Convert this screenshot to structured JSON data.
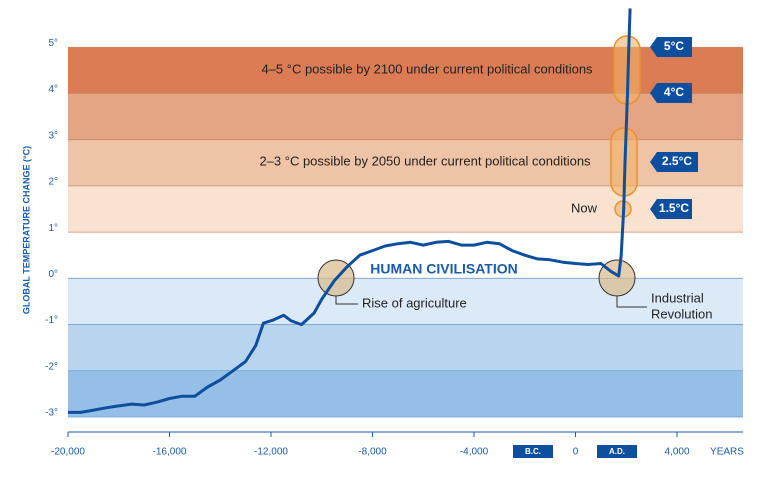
{
  "chart_data": {
    "type": "line",
    "y_label": "GLOBAL TEMPERATURE CHANGE (°C)",
    "x_unit_label": "YEARS",
    "era_labels": [
      "B.C.",
      "A.D."
    ],
    "xlim": [
      -20000,
      6600
    ],
    "xticks": [
      {
        "value": -20000,
        "label": "-20,000"
      },
      {
        "value": -16000,
        "label": "-16,000"
      },
      {
        "value": -12000,
        "label": "-12,000"
      },
      {
        "value": -8000,
        "label": "-8,000"
      },
      {
        "value": -4000,
        "label": "-4,000"
      },
      0,
      {
        "value": 4000,
        "label": "4,000"
      }
    ],
    "ylim": [
      -3,
      6
    ],
    "yticks": [
      {
        "value": -3,
        "label": "-3°"
      },
      {
        "value": -2,
        "label": "-2°"
      },
      {
        "value": -1,
        "label": "-1°"
      },
      {
        "value": 0,
        "label": "0°"
      },
      {
        "value": 1,
        "label": "1°"
      },
      {
        "value": 2,
        "label": "2°"
      },
      {
        "value": 3,
        "label": "3°"
      },
      {
        "value": 4,
        "label": "4°"
      },
      {
        "value": 5,
        "label": "5°"
      }
    ],
    "bands": [
      {
        "from": 4,
        "to": 5,
        "color": "#dc7c55"
      },
      {
        "from": 3,
        "to": 4,
        "color": "#e6a582"
      },
      {
        "from": 2,
        "to": 3,
        "color": "#efc3a5"
      },
      {
        "from": 1,
        "to": 2,
        "color": "#f9e2cf"
      },
      {
        "from": -1,
        "to": 0,
        "color": "#dceaf8"
      },
      {
        "from": -2,
        "to": -1,
        "color": "#b9d4ef"
      },
      {
        "from": -3,
        "to": -2,
        "color": "#95bfe6"
      }
    ],
    "series": [
      {
        "color": "#0d4f9e",
        "x": [
          -20000,
          -19500,
          -19000,
          -18500,
          -18000,
          -17500,
          -17000,
          -16500,
          -16000,
          -15500,
          -15000,
          -14500,
          -14000,
          -13500,
          -13000,
          -12600,
          -12300,
          -11900,
          -11500,
          -11200,
          -10800,
          -10300,
          -10000,
          -9500,
          -9000,
          -8500,
          -8000,
          -7500,
          -7000,
          -6500,
          -6000,
          -5500,
          -5000,
          -4500,
          -4000,
          -3500,
          -3000,
          -2500,
          -2000,
          -1500,
          -1000,
          -500,
          0,
          500,
          1000,
          1400,
          1700,
          1800,
          1900,
          1950,
          2050,
          2100,
          2150
        ],
        "values": [
          -2.9,
          -2.9,
          -2.85,
          -2.8,
          -2.76,
          -2.72,
          -2.74,
          -2.68,
          -2.6,
          -2.55,
          -2.55,
          -2.35,
          -2.2,
          -2.0,
          -1.8,
          -1.45,
          -0.97,
          -0.9,
          -0.8,
          -0.92,
          -1.0,
          -0.75,
          -0.45,
          -0.05,
          0.25,
          0.5,
          0.6,
          0.7,
          0.75,
          0.78,
          0.72,
          0.78,
          0.8,
          0.72,
          0.72,
          0.78,
          0.75,
          0.6,
          0.5,
          0.42,
          0.4,
          0.35,
          0.32,
          0.3,
          0.32,
          0.15,
          0.05,
          0.5,
          1.5,
          2.5,
          4,
          5,
          5.84
        ]
      }
    ],
    "annotations": {
      "band_high": "4–5 °C possible by 2100 under current political conditions",
      "band_mid": "2–3 °C possible by 2050 under current political conditions",
      "now": "Now",
      "civilisation": "HUMAN CIVILISATION",
      "agriculture": "Rise of agriculture",
      "industrial": [
        "Industrial",
        "Revolution"
      ],
      "badges": [
        "5°C",
        "4°C",
        "2.5°C",
        "1.5°C"
      ]
    }
  }
}
